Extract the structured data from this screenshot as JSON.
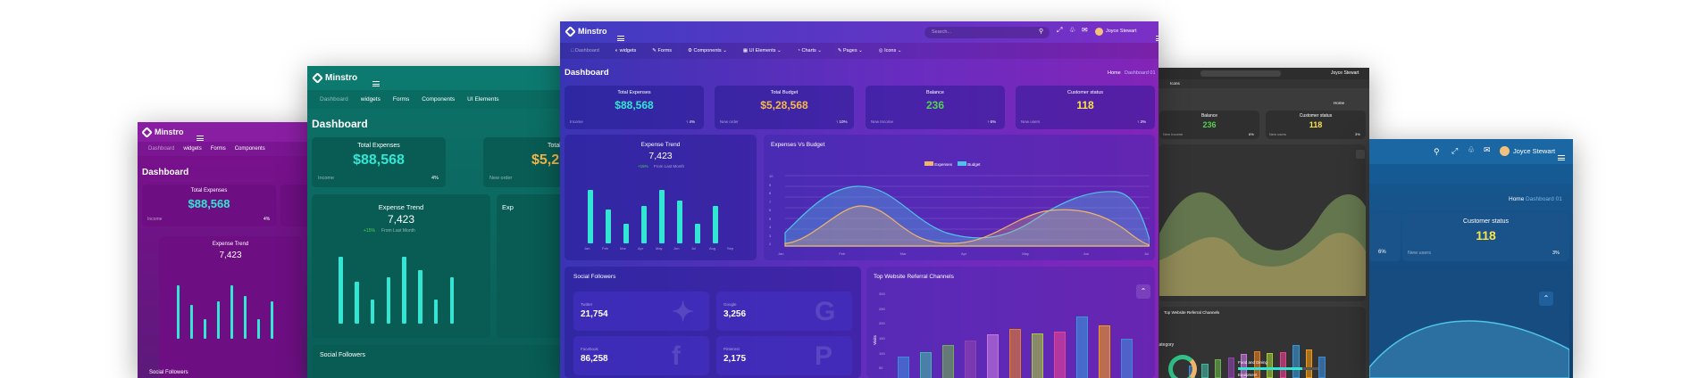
{
  "brand": "Minstro",
  "user": "Joyce Stewart",
  "search_placeholder": "Search...",
  "nav": {
    "dashboard": "Dashboard",
    "widgets": "widgets",
    "forms": "Forms",
    "components": "Components",
    "ui_elements": "UI Elements",
    "charts": "Charts",
    "pages": "Pages",
    "icons": "Icons"
  },
  "page_title": "Dashboard",
  "breadcrumb": {
    "home": "Home",
    "current": "Dashboard 01"
  },
  "stats": [
    {
      "title": "Total Expenses",
      "value": "$88,568",
      "label": "Income",
      "change": "4%",
      "color": "#33e6d3"
    },
    {
      "title": "Total Budget",
      "value": "$5,28,568",
      "label": "New order",
      "change": "10%",
      "color": "#f7b84b"
    },
    {
      "title": "Balance",
      "value": "236",
      "label": "New Income",
      "change": "6%",
      "color": "#53d153"
    },
    {
      "title": "Customer status",
      "value": "118",
      "label": "New users",
      "change": "3%",
      "color": "#f8e34b"
    }
  ],
  "left_stats": {
    "total_label": "Total",
    "total_value": "$5,2",
    "new_order": "New order",
    "exp_title_cut": "Exp"
  },
  "expense_trend": {
    "title": "Expense Trend",
    "value": "7,423",
    "change": "+15%",
    "change_note": "From Last Month",
    "chart_data": {
      "type": "bar",
      "categories": [
        "Jan",
        "Feb",
        "Mar",
        "Apr",
        "May",
        "Jun",
        "Jul",
        "Aug",
        "Sep"
      ],
      "values": [
        60,
        38,
        22,
        42,
        60,
        48,
        22,
        42,
        0
      ]
    }
  },
  "expenses_vs_budget": {
    "title": "Expenses Vs Budget",
    "legend": [
      "Expenses",
      "Budget"
    ],
    "colors": {
      "expenses": "#f0b46a",
      "budget": "#4fc3e8"
    },
    "chart_data": {
      "type": "area",
      "x": [
        "Jan",
        "Feb",
        "Mar",
        "Apr",
        "May",
        "Jun",
        "Jul"
      ],
      "ytick_labels": [
        "10",
        "9",
        "8",
        "7",
        "6",
        "5",
        "4",
        "3",
        "2"
      ]
    }
  },
  "social": {
    "title": "Social Followers",
    "items": [
      {
        "name": "Twitter",
        "value": "21,754",
        "icon": "twitter-icon"
      },
      {
        "name": "Google",
        "value": "3,256",
        "icon": "google-icon"
      },
      {
        "name": "Facebook",
        "value": "86,258",
        "icon": "facebook-icon"
      },
      {
        "name": "Pinterest",
        "value": "2,175",
        "icon": "pinterest-icon"
      }
    ]
  },
  "referral": {
    "title": "Top Website Referral Channels",
    "ylabel": "Visits",
    "ytick_labels": [
      "300",
      "250",
      "200",
      "150",
      "100",
      "50"
    ],
    "colors": [
      "#3d8bd9",
      "#3fb9a3",
      "#6ab04c",
      "#8e44ad",
      "#c678dd",
      "#e67e22",
      "#a3cb38",
      "#e84393",
      "#3498db",
      "#f39c12"
    ],
    "chart_data": {
      "type": "bar",
      "values": [
        80,
        95,
        120,
        135,
        155,
        175,
        160,
        165,
        215,
        185,
        140
      ]
    }
  },
  "dark_right": {
    "title": "Top Website Referral Channels",
    "category_title": "y Category",
    "progress_label_1": "Food and Dining",
    "progress_value_1": "80%",
    "progress_label_2": "Equipment"
  },
  "colors": {
    "purple": "#8e1ca8",
    "teal": "#0a6b62",
    "indigo": "#4a2fb8",
    "dark": "#3a3a3a",
    "blue": "#165a93",
    "accent": "#33e6d3"
  }
}
